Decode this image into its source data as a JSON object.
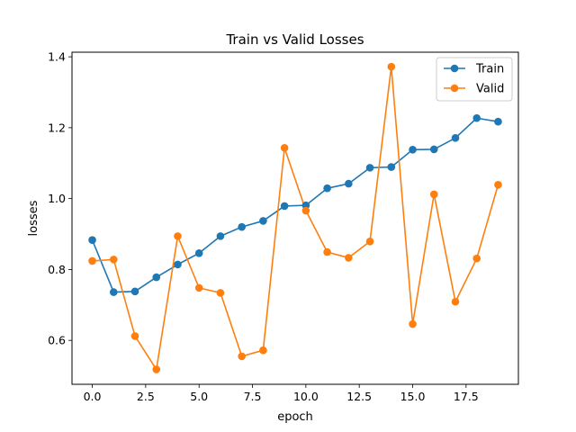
{
  "chart_data": {
    "type": "line",
    "title": "Train vs Valid Losses",
    "xlabel": "epoch",
    "ylabel": "losses",
    "xlim": [
      -0.95,
      19.95
    ],
    "ylim": [
      0.476,
      1.413
    ],
    "xticks": [
      0.0,
      2.5,
      5.0,
      7.5,
      10.0,
      12.5,
      15.0,
      17.5
    ],
    "xtick_labels": [
      "0.0",
      "2.5",
      "5.0",
      "7.5",
      "10.0",
      "12.5",
      "15.0",
      "17.5"
    ],
    "yticks": [
      0.6,
      0.8,
      1.0,
      1.2,
      1.4
    ],
    "ytick_labels": [
      "0.6",
      "0.8",
      "1.0",
      "1.2",
      "1.4"
    ],
    "grid": false,
    "legend_position": "top-right",
    "x": [
      0,
      1,
      2,
      3,
      4,
      5,
      6,
      7,
      8,
      9,
      10,
      11,
      12,
      13,
      14,
      15,
      16,
      17,
      18,
      19
    ],
    "series": [
      {
        "name": "Train",
        "color": "#1f77b4",
        "marker": "circle",
        "values": [
          0.883,
          0.736,
          0.738,
          0.778,
          0.814,
          0.846,
          0.894,
          0.92,
          0.937,
          0.979,
          0.981,
          1.029,
          1.042,
          1.087,
          1.089,
          1.138,
          1.139,
          1.171,
          1.227,
          1.217
        ]
      },
      {
        "name": "Valid",
        "color": "#ff7f0e",
        "marker": "circle",
        "values": [
          0.824,
          0.828,
          0.612,
          0.518,
          0.894,
          0.748,
          0.734,
          0.555,
          0.572,
          1.143,
          0.966,
          0.849,
          0.833,
          0.879,
          1.372,
          0.646,
          1.012,
          0.709,
          0.831,
          1.039
        ]
      }
    ]
  }
}
